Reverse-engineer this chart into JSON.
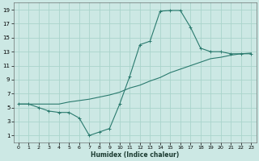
{
  "xlabel": "Humidex (Indice chaleur)",
  "bg_color": "#cce8e4",
  "grid_color": "#aad4cc",
  "line_color": "#2a7a6e",
  "xlim": [
    -0.5,
    23.5
  ],
  "ylim": [
    0,
    20
  ],
  "xticks": [
    0,
    1,
    2,
    3,
    4,
    5,
    6,
    7,
    8,
    9,
    10,
    11,
    12,
    13,
    14,
    15,
    16,
    17,
    18,
    19,
    20,
    21,
    22,
    23
  ],
  "yticks": [
    1,
    3,
    5,
    7,
    9,
    11,
    13,
    15,
    17,
    19
  ],
  "line1_x": [
    0,
    1,
    2,
    3,
    4,
    5,
    6,
    7,
    8,
    9,
    10,
    11,
    12,
    13,
    14,
    15,
    16,
    17,
    18,
    19,
    20,
    21,
    22,
    23
  ],
  "line1_y": [
    5.5,
    5.5,
    5.0,
    4.5,
    4.3,
    4.3,
    3.5,
    1.0,
    1.5,
    2.0,
    5.5,
    9.5,
    14.0,
    14.5,
    18.8,
    18.9,
    18.9,
    16.5,
    13.5,
    13.0,
    13.0,
    12.7,
    12.7,
    12.7
  ],
  "line2_x": [
    0,
    1,
    2,
    3,
    4,
    5,
    6,
    7,
    8,
    9,
    10,
    11,
    12,
    13,
    14,
    15,
    16,
    17,
    18,
    19,
    20,
    21,
    22,
    23
  ],
  "line2_y": [
    5.5,
    5.5,
    5.5,
    5.5,
    5.5,
    5.8,
    6.0,
    6.2,
    6.5,
    6.8,
    7.2,
    7.8,
    8.2,
    8.8,
    9.3,
    10.0,
    10.5,
    11.0,
    11.5,
    12.0,
    12.2,
    12.5,
    12.7,
    12.8
  ]
}
